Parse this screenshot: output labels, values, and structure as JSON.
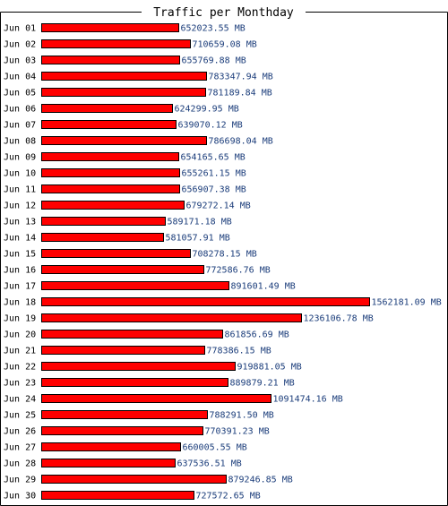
{
  "chart_data": {
    "type": "bar",
    "orientation": "horizontal",
    "title": "Traffic per Monthday",
    "xlabel": "",
    "ylabel": "",
    "unit": "MB",
    "grid": false,
    "legend": "none",
    "xlim": [
      0,
      1562181.09
    ],
    "bar_color": "#ff0000",
    "label_color": "#1a3c7a",
    "categories": [
      "Jun 01",
      "Jun 02",
      "Jun 03",
      "Jun 04",
      "Jun 05",
      "Jun 06",
      "Jun 07",
      "Jun 08",
      "Jun 09",
      "Jun 10",
      "Jun 11",
      "Jun 12",
      "Jun 13",
      "Jun 14",
      "Jun 15",
      "Jun 16",
      "Jun 17",
      "Jun 18",
      "Jun 19",
      "Jun 20",
      "Jun 21",
      "Jun 22",
      "Jun 23",
      "Jun 24",
      "Jun 25",
      "Jun 26",
      "Jun 27",
      "Jun 28",
      "Jun 29",
      "Jun 30"
    ],
    "values": [
      652023.55,
      710659.08,
      655769.88,
      783347.94,
      781189.84,
      624299.95,
      639070.12,
      786698.04,
      654165.65,
      655261.15,
      656907.38,
      679272.14,
      589171.18,
      581057.91,
      708278.15,
      772586.76,
      891601.49,
      1562181.09,
      1236106.78,
      861856.69,
      778386.15,
      919881.05,
      889879.21,
      1091474.16,
      788291.5,
      770391.23,
      660005.55,
      637536.51,
      879246.85,
      727572.65
    ],
    "value_labels": [
      "652023.55 MB",
      "710659.08 MB",
      "655769.88 MB",
      "783347.94 MB",
      "781189.84 MB",
      "624299.95 MB",
      "639070.12 MB",
      "786698.04 MB",
      "654165.65 MB",
      "655261.15 MB",
      "656907.38 MB",
      "679272.14 MB",
      "589171.18 MB",
      "581057.91 MB",
      "708278.15 MB",
      "772586.76 MB",
      "891601.49 MB",
      "1562181.09 MB",
      "1236106.78 MB",
      "861856.69 MB",
      "778386.15 MB",
      "919881.05 MB",
      "889879.21 MB",
      "1091474.16 MB",
      "788291.50 MB",
      "770391.23 MB",
      "660005.55 MB",
      "637536.51 MB",
      "879246.85 MB",
      "727572.65 MB"
    ]
  }
}
